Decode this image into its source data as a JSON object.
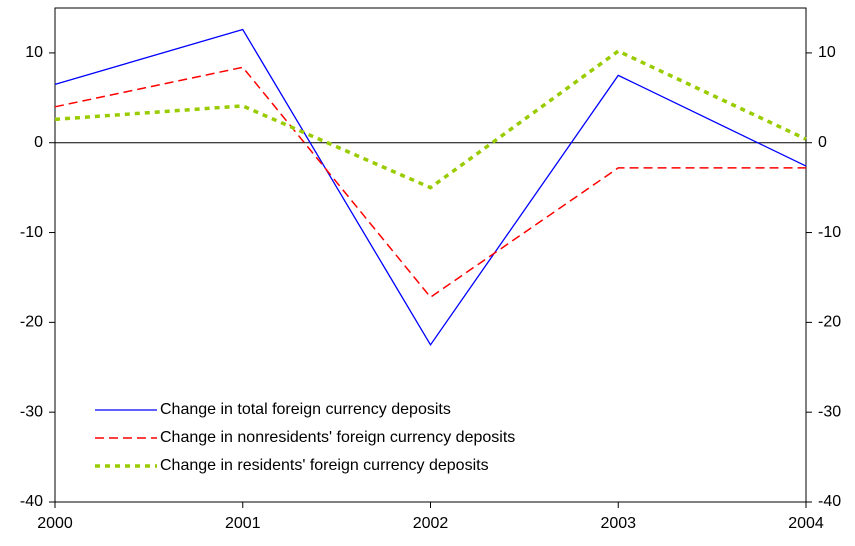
{
  "chart_data": {
    "type": "line",
    "x": [
      2000,
      2001,
      2002,
      2003,
      2004
    ],
    "xlim": [
      2000,
      2004
    ],
    "xticks": [
      2000,
      2001,
      2002,
      2003,
      2004
    ],
    "ylim": [
      -40,
      15
    ],
    "yticks": [
      -40,
      -30,
      -20,
      -10,
      0,
      10
    ],
    "y2lim": [
      -40,
      15
    ],
    "y2ticks": [
      -40,
      -30,
      -20,
      -10,
      0,
      10
    ],
    "zero_line": true,
    "series": [
      {
        "name": "Change in total foreign currency deposits",
        "color": "#0000ff",
        "style": "solid",
        "values": [
          6.5,
          12.6,
          -22.5,
          7.5,
          -2.6
        ]
      },
      {
        "name": "Change in nonresidents' foreign currency deposits",
        "color": "#ff0000",
        "style": "dashed",
        "values": [
          4.0,
          8.4,
          -17.2,
          -2.8,
          -2.8
        ]
      },
      {
        "name": "Change in residents' foreign currency deposits",
        "color": "#99cc00",
        "style": "dotted",
        "values": [
          2.6,
          4.1,
          -5.0,
          10.2,
          0.4
        ]
      }
    ]
  }
}
